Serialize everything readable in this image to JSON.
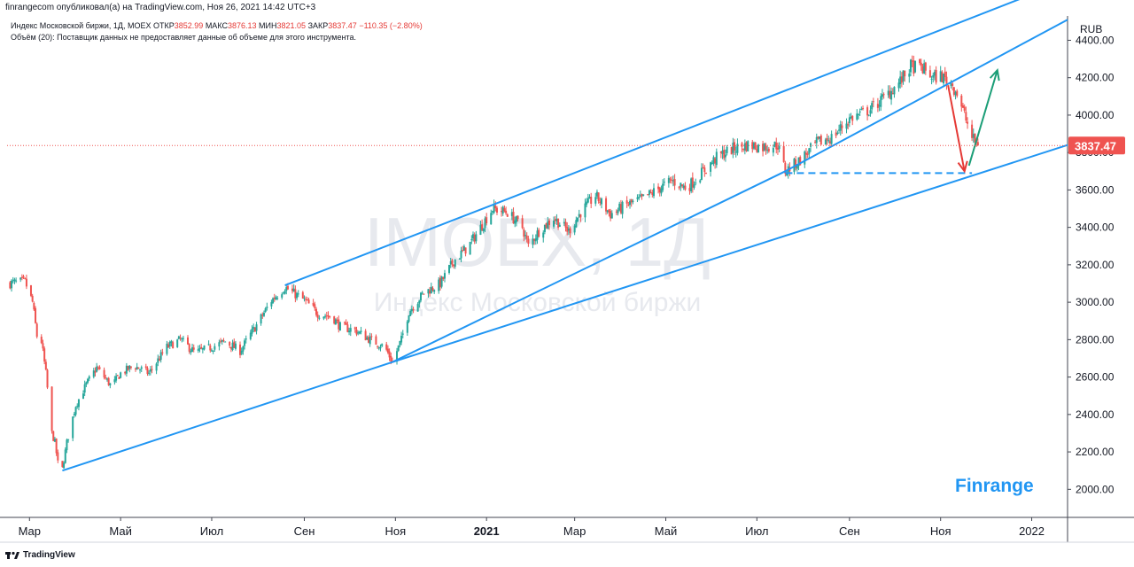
{
  "header": {
    "published_by": "finrangecom опубликовал(а) на TradingView.com, Ноя 26, 2021 14:42 UTC+3"
  },
  "legend": {
    "instrument": "Индекс Московской биржи, 1Д, MOEX",
    "open_label": "ОТКР",
    "open_value": "3852.99",
    "high_label": "МАКС",
    "high_value": "3876.13",
    "low_label": "МИН",
    "low_value": "3821.05",
    "close_label": "ЗАКР",
    "close_value": "3837.47",
    "change": "−110.35 (−2.80%)",
    "volume_note": "Объём (20): Поставщик данных не предоставляет данные об объеме для этого инструмента."
  },
  "watermark": {
    "symbol": "IMOEX, 1Д",
    "name": "Индекс Московской биржи"
  },
  "brand": "Finrange",
  "footer": {
    "logo": "TradingView"
  },
  "colors": {
    "up": "#26a69a",
    "down": "#ef5350",
    "trend": "#2196f3",
    "arrow_down": "#e53935",
    "arrow_up": "#1b9e77",
    "price_label": "#ef5350"
  },
  "chart_data": {
    "type": "candlestick",
    "currency": "RUB",
    "last_price": "3837.47",
    "ylim": [
      1850,
      4530
    ],
    "xlim": [
      "2020-02-15",
      "2022-01-25"
    ],
    "y_ticks": [
      "4400.00",
      "4200.00",
      "4000.00",
      "3800.00",
      "3600.00",
      "3400.00",
      "3200.00",
      "3000.00",
      "2800.00",
      "2600.00",
      "2400.00",
      "2200.00",
      "2000.00"
    ],
    "x_ticks": [
      {
        "label": "Мар",
        "date": "2020-03-01",
        "bold": false
      },
      {
        "label": "Май",
        "date": "2020-05-01",
        "bold": false
      },
      {
        "label": "Июл",
        "date": "2020-07-01",
        "bold": false
      },
      {
        "label": "Сен",
        "date": "2020-09-01",
        "bold": false
      },
      {
        "label": "Ноя",
        "date": "2020-11-01",
        "bold": false
      },
      {
        "label": "2021",
        "date": "2021-01-01",
        "bold": true
      },
      {
        "label": "Мар",
        "date": "2021-03-01",
        "bold": false
      },
      {
        "label": "Май",
        "date": "2021-05-01",
        "bold": false
      },
      {
        "label": "Июл",
        "date": "2021-07-01",
        "bold": false
      },
      {
        "label": "Сен",
        "date": "2021-09-01",
        "bold": false
      },
      {
        "label": "Ноя",
        "date": "2021-11-01",
        "bold": false
      },
      {
        "label": "2022",
        "date": "2022-01-01",
        "bold": false
      }
    ],
    "price_path": [
      [
        "2020-02-15",
        3100
      ],
      [
        "2020-02-27",
        3110
      ],
      [
        "2020-03-03",
        3000
      ],
      [
        "2020-03-06",
        2820
      ],
      [
        "2020-03-09",
        2790
      ],
      [
        "2020-03-12",
        2620
      ],
      [
        "2020-03-16",
        2300
      ],
      [
        "2020-03-18",
        2250
      ],
      [
        "2020-03-20",
        2140
      ],
      [
        "2020-03-23",
        2110
      ],
      [
        "2020-03-26",
        2250
      ],
      [
        "2020-04-01",
        2450
      ],
      [
        "2020-04-08",
        2560
      ],
      [
        "2020-04-15",
        2650
      ],
      [
        "2020-04-25",
        2550
      ],
      [
        "2020-05-01",
        2620
      ],
      [
        "2020-05-10",
        2660
      ],
      [
        "2020-05-20",
        2620
      ],
      [
        "2020-06-01",
        2760
      ],
      [
        "2020-06-10",
        2800
      ],
      [
        "2020-06-20",
        2730
      ],
      [
        "2020-07-01",
        2760
      ],
      [
        "2020-07-10",
        2790
      ],
      [
        "2020-07-20",
        2740
      ],
      [
        "2020-08-01",
        2890
      ],
      [
        "2020-08-10",
        3010
      ],
      [
        "2020-08-19",
        3080
      ],
      [
        "2020-09-01",
        3010
      ],
      [
        "2020-09-10",
        2940
      ],
      [
        "2020-09-20",
        2920
      ],
      [
        "2020-09-25",
        2870
      ],
      [
        "2020-10-05",
        2850
      ],
      [
        "2020-10-15",
        2800
      ],
      [
        "2020-10-25",
        2760
      ],
      [
        "2020-10-30",
        2680
      ],
      [
        "2020-11-05",
        2800
      ],
      [
        "2020-11-10",
        2950
      ],
      [
        "2020-11-20",
        3050
      ],
      [
        "2020-12-01",
        3100
      ],
      [
        "2020-12-10",
        3220
      ],
      [
        "2020-12-20",
        3300
      ],
      [
        "2020-12-28",
        3400
      ],
      [
        "2021-01-05",
        3500
      ],
      [
        "2021-01-15",
        3480
      ],
      [
        "2021-01-25",
        3400
      ],
      [
        "2021-01-29",
        3300
      ],
      [
        "2021-02-05",
        3380
      ],
      [
        "2021-02-15",
        3450
      ],
      [
        "2021-02-25",
        3380
      ],
      [
        "2021-03-05",
        3480
      ],
      [
        "2021-03-15",
        3570
      ],
      [
        "2021-03-25",
        3470
      ],
      [
        "2021-04-05",
        3520
      ],
      [
        "2021-04-15",
        3550
      ],
      [
        "2021-04-25",
        3600
      ],
      [
        "2021-05-05",
        3650
      ],
      [
        "2021-05-15",
        3610
      ],
      [
        "2021-05-25",
        3690
      ],
      [
        "2021-06-05",
        3780
      ],
      [
        "2021-06-15",
        3820
      ],
      [
        "2021-06-25",
        3840
      ],
      [
        "2021-07-05",
        3830
      ],
      [
        "2021-07-15",
        3840
      ],
      [
        "2021-07-20",
        3700
      ],
      [
        "2021-07-30",
        3760
      ],
      [
        "2021-08-10",
        3850
      ],
      [
        "2021-08-20",
        3880
      ],
      [
        "2021-09-01",
        3980
      ],
      [
        "2021-09-15",
        4030
      ],
      [
        "2021-09-25",
        4100
      ],
      [
        "2021-10-05",
        4180
      ],
      [
        "2021-10-12",
        4260
      ],
      [
        "2021-10-20",
        4250
      ],
      [
        "2021-10-27",
        4200
      ],
      [
        "2021-11-01",
        4210
      ],
      [
        "2021-11-08",
        4170
      ],
      [
        "2021-11-12",
        4120
      ],
      [
        "2021-11-17",
        4000
      ],
      [
        "2021-11-22",
        3880
      ],
      [
        "2021-11-26",
        3837
      ]
    ],
    "annotations": {
      "channel_top": [
        [
          "2020-08-19",
          3090
        ],
        [
          "2021-01-05",
          3520
        ],
        [
          "2022-01-25",
          4720
        ]
      ],
      "channel_mid": [
        [
          "2020-10-30",
          2680
        ],
        [
          "2021-07-20",
          3700
        ],
        [
          "2022-01-25",
          4510
        ]
      ],
      "channel_bottom": [
        [
          "2020-03-23",
          2100
        ],
        [
          "2020-10-30",
          2680
        ],
        [
          "2022-01-25",
          3840
        ]
      ],
      "support_dashed": [
        [
          "2021-07-20",
          3690
        ],
        [
          "2021-11-22",
          3690
        ]
      ],
      "arrow_down": [
        [
          "2021-11-06",
          4160
        ],
        [
          "2021-11-17",
          3700
        ]
      ],
      "arrow_up": [
        [
          "2021-11-20",
          3730
        ],
        [
          "2021-12-09",
          4240
        ]
      ]
    }
  }
}
